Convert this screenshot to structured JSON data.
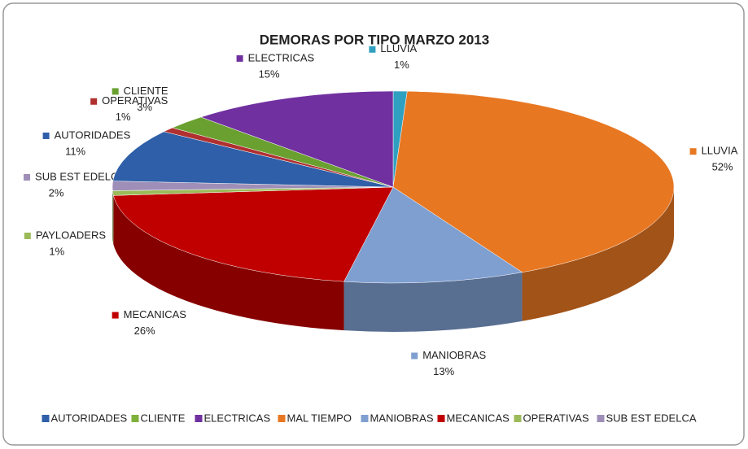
{
  "chart_data": {
    "type": "pie3d",
    "title": "DEMORAS POR TIPO MARZO 2013",
    "categories": [
      "LLUVIA",
      "LLUVIA",
      "MANIOBRAS",
      "MECANICAS",
      "PAYLOADERS",
      "SUB EST EDELCA",
      "AUTORIDADES",
      "OPERATIVAS",
      "CLIENTE",
      "ELECTRICAS"
    ],
    "values": [
      1,
      52,
      13,
      26,
      1,
      2,
      11,
      1,
      3,
      15
    ],
    "value_labels": [
      "1%",
      "52%",
      "13%",
      "26%",
      "1%",
      "2%",
      "11%",
      "1%",
      "3%",
      "15%"
    ],
    "colors": [
      "#2fa0c0",
      "#e87722",
      "#7f9fd0",
      "#c00000",
      "#9bbb59",
      "#9f8fb8",
      "#2e5fa8",
      "#b03030",
      "#6aa030",
      "#7030a0"
    ],
    "legend": [
      {
        "name": "AUTORIDADES",
        "color": "#2e5fa8"
      },
      {
        "name": "CLIENTE",
        "color": "#7fb03a"
      },
      {
        "name": "ELECTRICAS",
        "color": "#7030a0"
      },
      {
        "name": "MAL TIEMPO",
        "color": "#e87722"
      },
      {
        "name": "MANIOBRAS",
        "color": "#7f9fd0"
      },
      {
        "name": "MECANICAS",
        "color": "#c00000"
      },
      {
        "name": "OPERATIVAS",
        "color": "#9bbb59"
      },
      {
        "name": "SUB EST EDELCA",
        "color": "#9f8fb8"
      }
    ]
  }
}
